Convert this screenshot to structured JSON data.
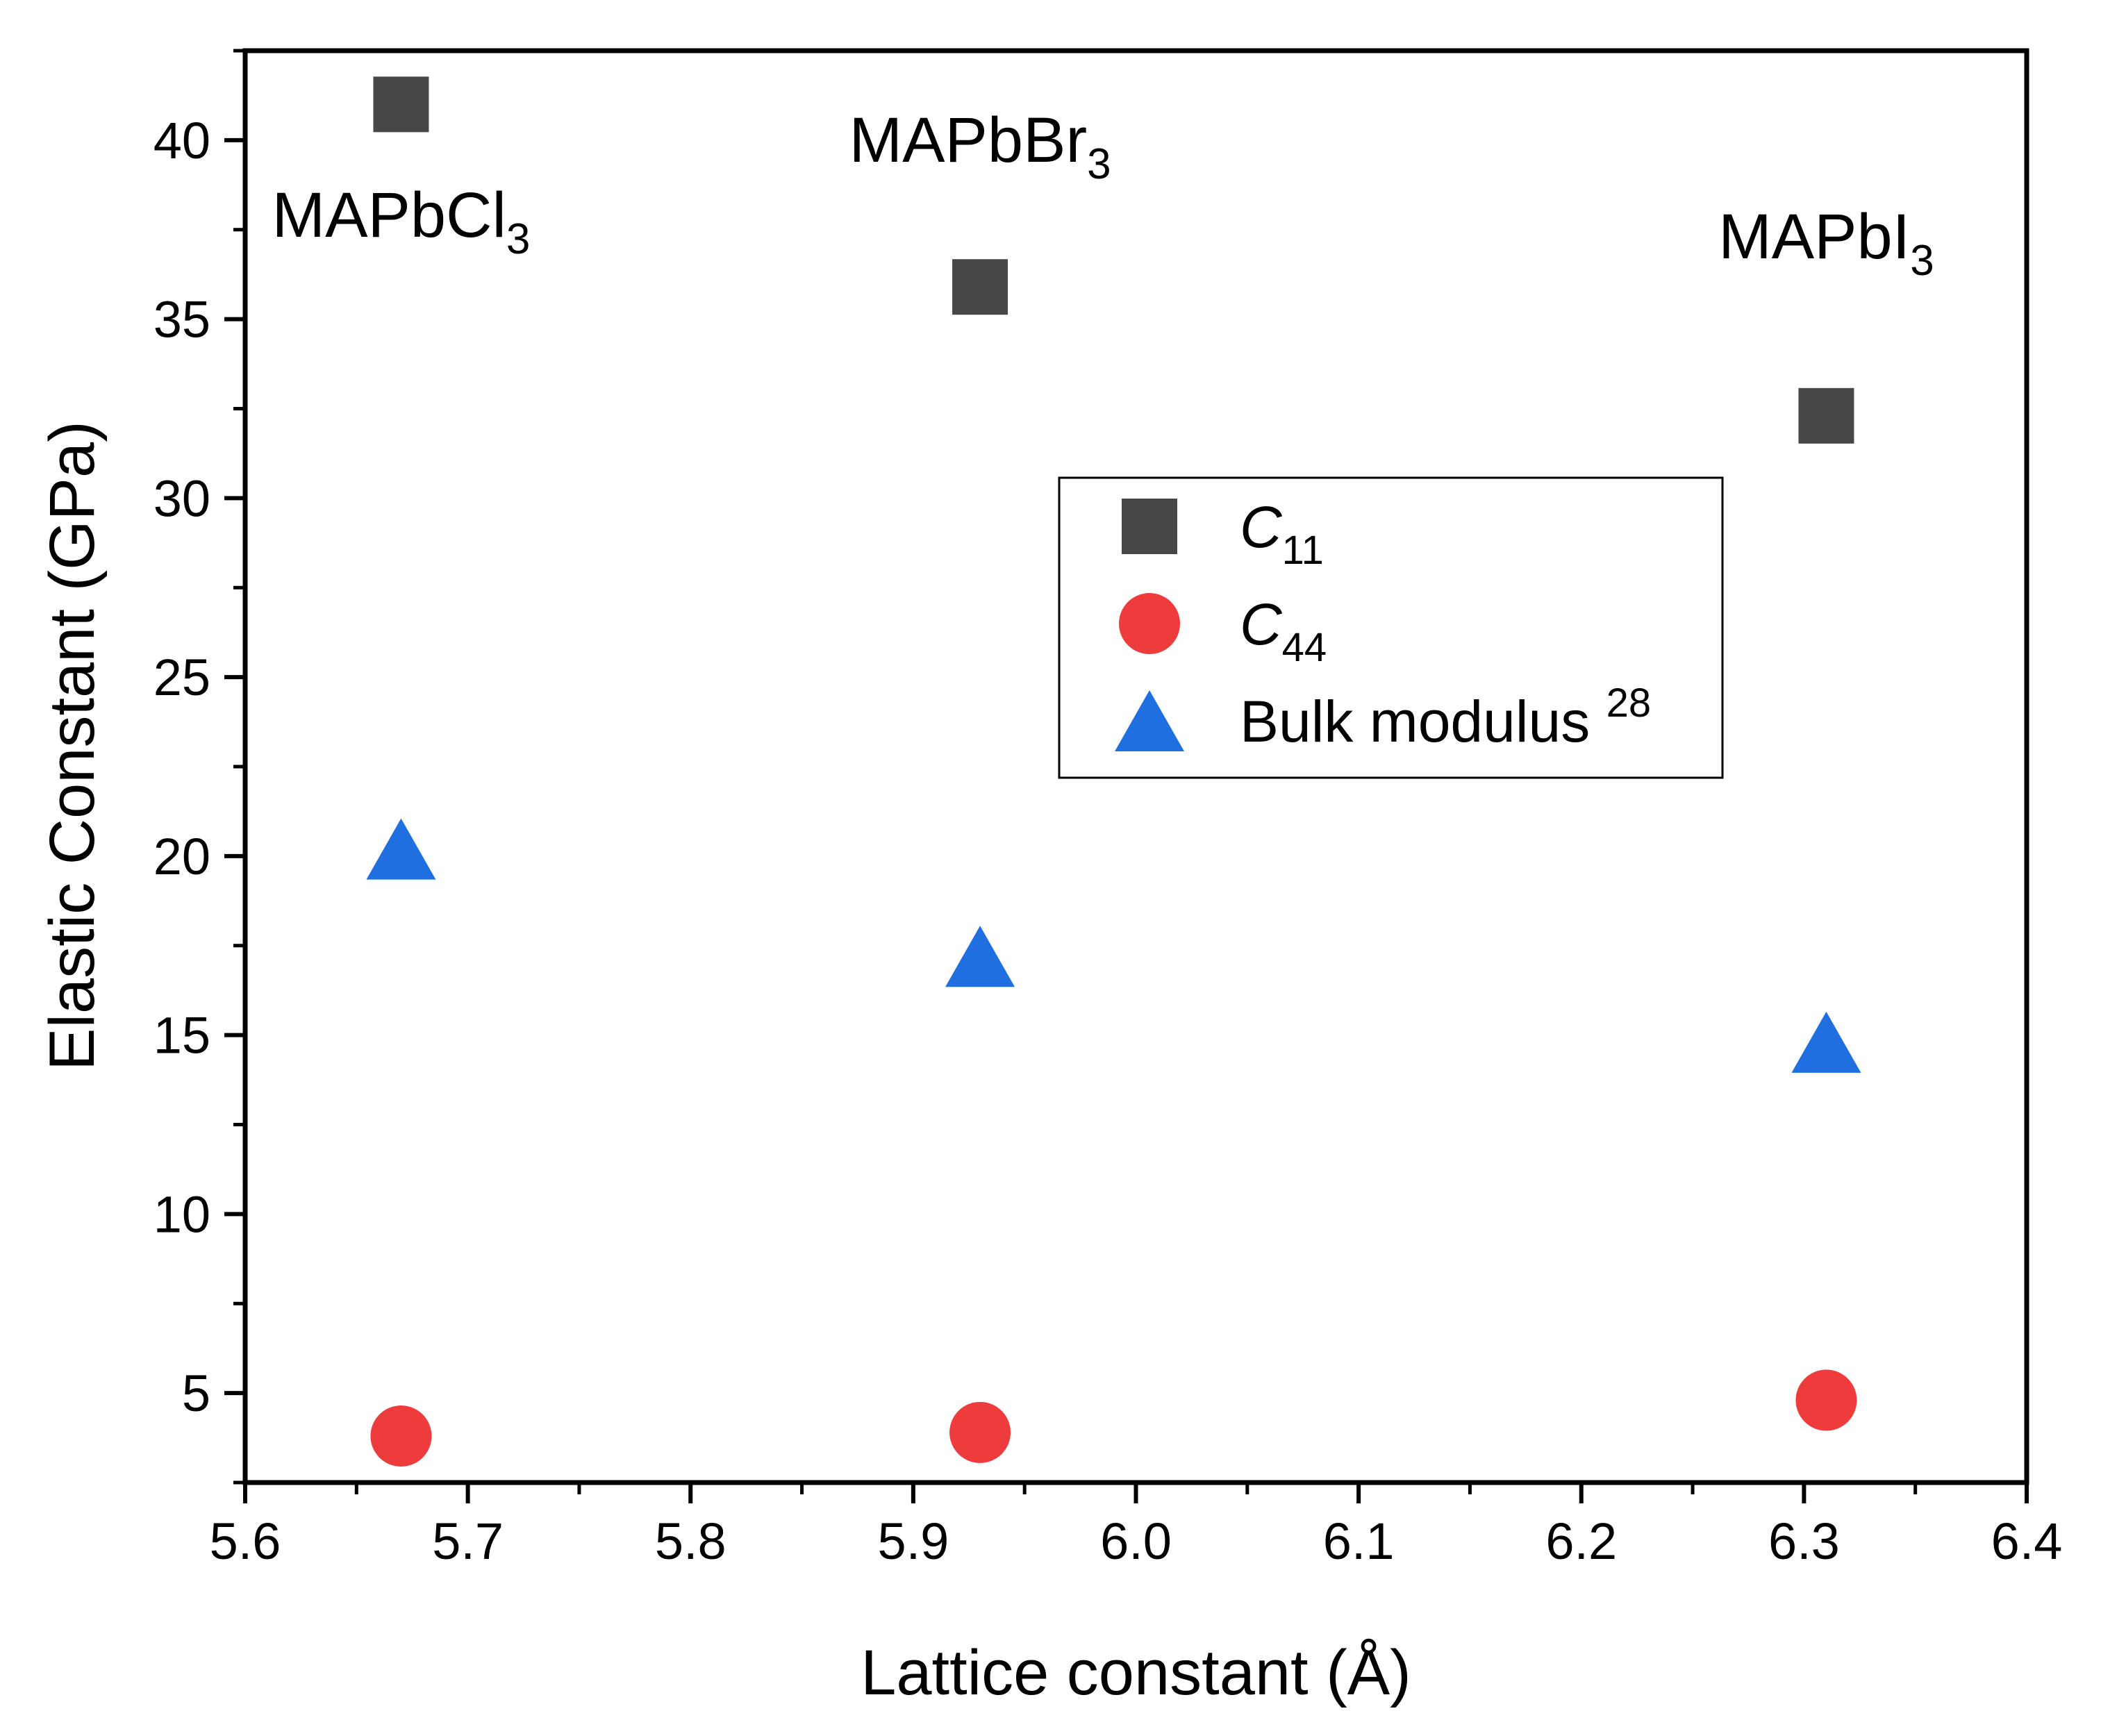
{
  "chart_data": {
    "type": "scatter",
    "xlabel": "Lattice constant (Å)",
    "ylabel": "Elastic Constant (GPa)",
    "xlim": [
      5.6,
      6.4
    ],
    "ylim": [
      2.5,
      42.5
    ],
    "x_ticks": [
      "5.6",
      "5.7",
      "5.8",
      "5.9",
      "6.0",
      "6.1",
      "6.2",
      "6.3",
      "6.4"
    ],
    "y_ticks": [
      "5",
      "10",
      "15",
      "20",
      "25",
      "30",
      "35",
      "40"
    ],
    "x_tick_values": [
      5.6,
      5.7,
      5.8,
      5.9,
      6.0,
      6.1,
      6.2,
      6.3,
      6.4
    ],
    "y_tick_values": [
      5,
      10,
      15,
      20,
      25,
      30,
      35,
      40
    ],
    "series": [
      {
        "name": "C11",
        "label_main": "C",
        "label_sub": "11",
        "label_sup": "",
        "marker": "square",
        "color": "#474747",
        "x": [
          5.67,
          5.93,
          6.31
        ],
        "y": [
          41.0,
          35.9,
          32.3
        ]
      },
      {
        "name": "C44",
        "label_main": "C",
        "label_sub": "44",
        "label_sup": "",
        "marker": "circle",
        "color": "#ee3b3b",
        "x": [
          5.67,
          5.93,
          6.31
        ],
        "y": [
          3.8,
          3.9,
          4.8
        ]
      },
      {
        "name": "Bulk modulus 28",
        "label_main": "Bulk modulus ",
        "label_sub": "",
        "label_sup": "28",
        "marker": "triangle",
        "color": "#1f6fe0",
        "x": [
          5.67,
          5.93,
          6.31
        ],
        "y": [
          20.2,
          17.2,
          14.8
        ]
      }
    ],
    "annotations": [
      {
        "main": "MAPbCl",
        "sub": "3",
        "x": 5.67,
        "y": 37.3
      },
      {
        "main": "MAPbBr",
        "sub": "3",
        "x": 5.93,
        "y": 39.4
      },
      {
        "main": "MAPbI",
        "sub": "3",
        "x": 6.31,
        "y": 36.7
      }
    ],
    "legend": {
      "position": "center-right"
    },
    "grid": false
  }
}
